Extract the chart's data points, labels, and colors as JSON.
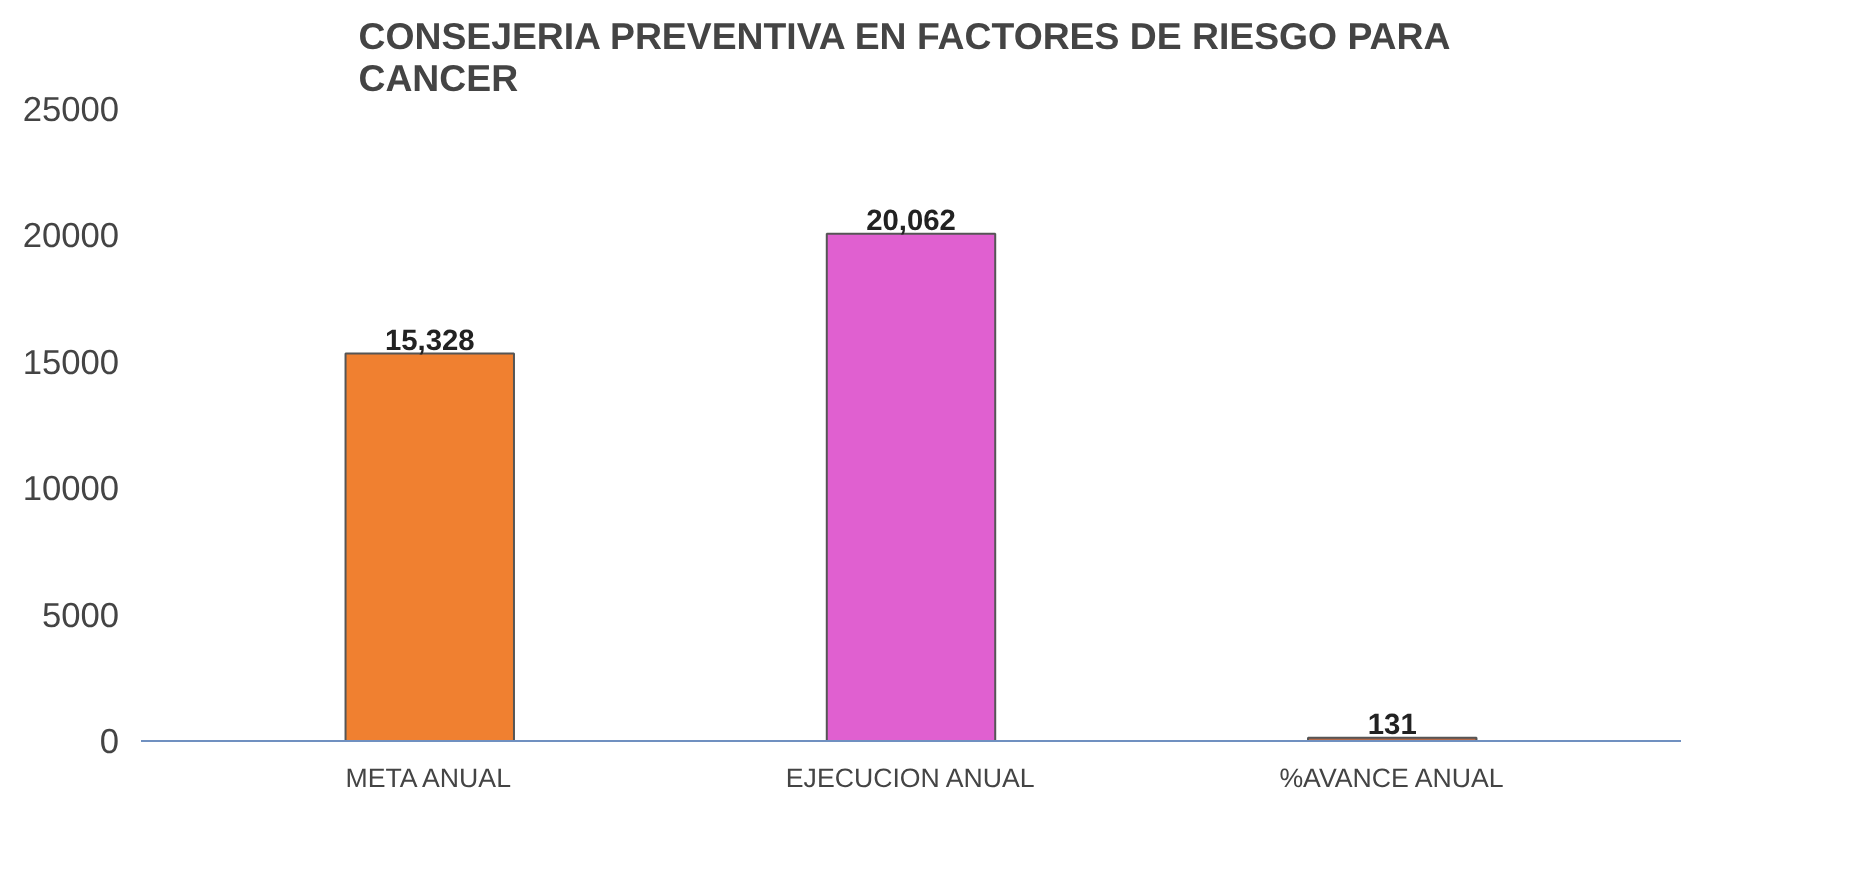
{
  "chart_data": {
    "type": "bar",
    "title": "CONSEJERIA  PREVENTIVA EN FACTORES DE RIESGO PARA CANCER",
    "categories": [
      "META ANUAL",
      "EJECUCION ANUAL",
      "%AVANCE ANUAL"
    ],
    "values": [
      15328,
      20062,
      131
    ],
    "colors": [
      "#f08030",
      "#e060d0",
      "#b86a48"
    ],
    "value_labels": [
      "15,328",
      "20,062",
      "131"
    ],
    "ylim": [
      0,
      25000
    ],
    "yticks": [
      0,
      5000,
      10000,
      15000,
      20000,
      25000
    ],
    "grid": false
  }
}
